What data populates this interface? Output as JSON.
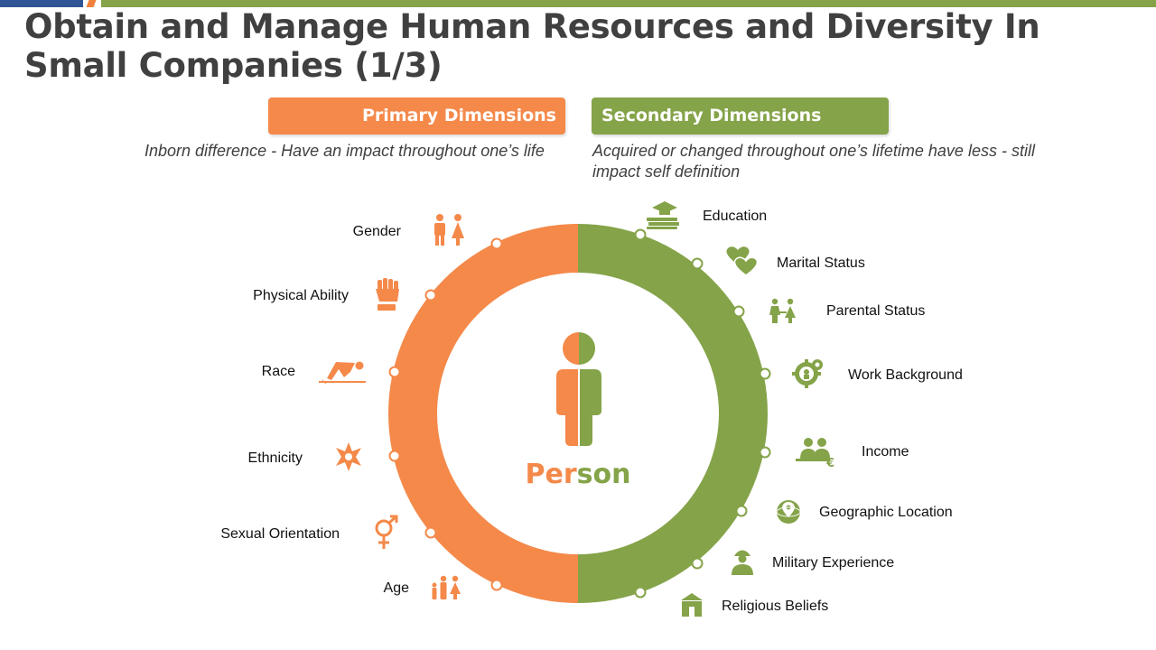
{
  "title": "Obtain and Manage Human Resources and Diversity In Small Companies (1/3)",
  "colors": {
    "orange": "#f4894a",
    "green": "#85a349",
    "blue": "#2f5597",
    "title": "#404040"
  },
  "primary": {
    "label": "Primary Dimensions",
    "description": "Inborn difference - Have an impact throughout one’s life",
    "items": [
      {
        "label": "Gender",
        "icon": "gender-icon"
      },
      {
        "label": "Physical Ability",
        "icon": "fist-icon"
      },
      {
        "label": "Race",
        "icon": "runner-start-icon"
      },
      {
        "label": "Ethnicity",
        "icon": "star-pattern-icon"
      },
      {
        "label": "Sexual Orientation",
        "icon": "gender-symbol-icon"
      },
      {
        "label": "Age",
        "icon": "family-icon"
      }
    ]
  },
  "secondary": {
    "label": "Secondary Dimensions",
    "description": "Acquired or changed throughout one’s lifetime have less - still impact self definition",
    "items": [
      {
        "label": "Education",
        "icon": "books-cap-icon"
      },
      {
        "label": "Marital Status",
        "icon": "hearts-icon"
      },
      {
        "label": "Parental Status",
        "icon": "couple-icon"
      },
      {
        "label": "Work Background",
        "icon": "gears-icon"
      },
      {
        "label": "Income",
        "icon": "people-euro-icon"
      },
      {
        "label": "Geographic Location",
        "icon": "globe-pin-icon"
      },
      {
        "label": "Military Experience",
        "icon": "soldier-icon"
      },
      {
        "label": "Religious Beliefs",
        "icon": "temple-icon"
      }
    ]
  },
  "center": {
    "part1": "Per",
    "part2": "son"
  }
}
